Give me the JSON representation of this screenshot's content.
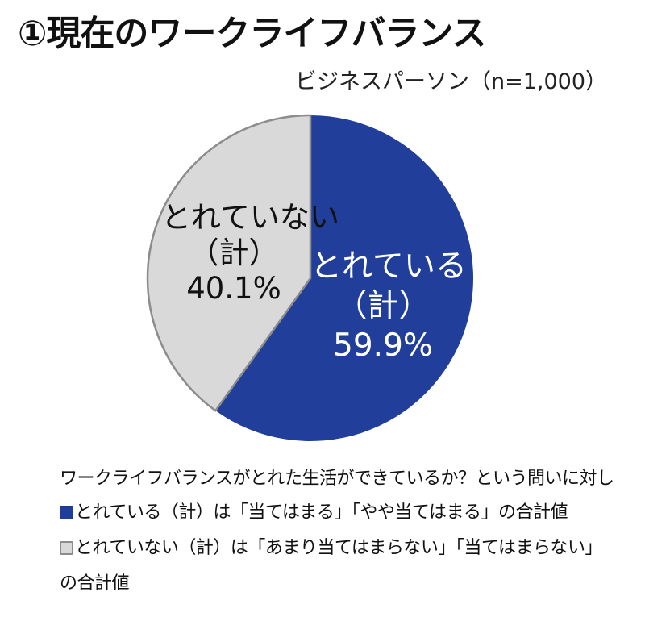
{
  "title": "①現在のワークライフバランス",
  "sample": "ビジネスパーソン（n=1,000）",
  "colors": {
    "yes": "#213f9a",
    "not": "#d9d9d9",
    "border": "#8c8c8c"
  },
  "labels": {
    "not": {
      "line1": "とれていない",
      "line2": "（計）",
      "line3": "40.1%"
    },
    "yes": {
      "line1": "とれている",
      "line2": "（計）",
      "line3": "59.9%"
    }
  },
  "notes": {
    "question": "ワークライフバランスがとれた生活ができているか？という問いに対し",
    "yes_def": "とれている（計）は「当てはまる」「やや当てはまる」の合計値",
    "not_def": "とれていない（計）は「あまり当てはまらない」「当てはまらない」",
    "not_def_cont": "の合計値"
  },
  "chart_data": {
    "type": "pie",
    "title": "①現在のワークライフバランス",
    "subtitle": "ビジネスパーソン（n=1,000）",
    "categories": [
      "とれている（計）",
      "とれていない（計）"
    ],
    "values": [
      59.9,
      40.1
    ],
    "unit": "%",
    "start_angle": "12 o'clock, clockwise",
    "colors": [
      "#213f9a",
      "#d9d9d9"
    ],
    "legend": [
      {
        "swatch": "#213f9a",
        "text": "とれている（計）は「当てはまる」「やや当てはまる」の合計値"
      },
      {
        "swatch": "#d9d9d9",
        "text": "とれていない（計）は「あまり当てはまらない」「当てはまらない」の合計値"
      }
    ],
    "annotation": "ワークライフバランスがとれた生活ができているか？という問いに対し",
    "legend_position": "bottom"
  }
}
